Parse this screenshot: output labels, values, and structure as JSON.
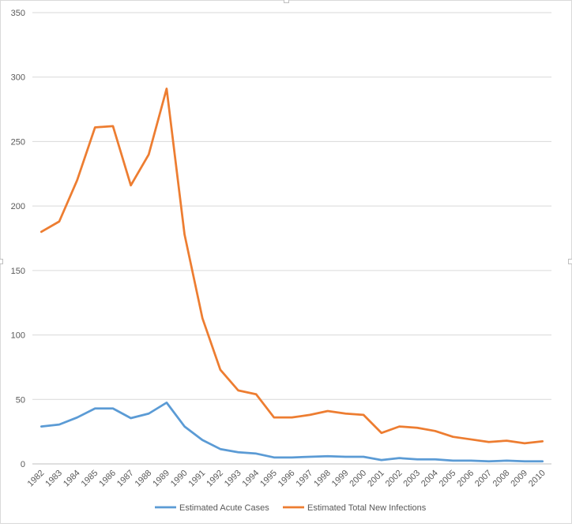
{
  "chart_data": {
    "type": "line",
    "title": "",
    "xlabel": "",
    "ylabel": "",
    "ylim": [
      0,
      350
    ],
    "yticks": [
      0,
      50,
      100,
      150,
      200,
      250,
      300,
      350
    ],
    "grid": "horizontal",
    "legend_position": "bottom",
    "categories": [
      "1982",
      "1983",
      "1984",
      "1985",
      "1986",
      "1987",
      "1988",
      "1989",
      "1990",
      "1991",
      "1992",
      "1993",
      "1994",
      "1995",
      "1996",
      "1997",
      "1998",
      "1999",
      "2000",
      "2001",
      "2002",
      "2003",
      "2004",
      "2005",
      "2006",
      "2007",
      "2008",
      "2009",
      "2010"
    ],
    "series": [
      {
        "name": "Estimated Acute Cases",
        "color": "#5b9bd5",
        "values": [
          29,
          30.5,
          36,
          43,
          43,
          35.5,
          39,
          47.5,
          29,
          18.5,
          11.5,
          9,
          8,
          5,
          5,
          5.5,
          6,
          5.5,
          5.5,
          3,
          4.5,
          3.5,
          3.5,
          2.5,
          2.5,
          2,
          2.5,
          2,
          2
        ]
      },
      {
        "name": "Estimated Total New Infections",
        "color": "#ed7d31",
        "values": [
          180,
          188,
          220,
          261,
          262,
          216,
          240,
          291,
          178,
          113,
          73,
          57,
          54,
          36,
          36,
          38,
          41,
          39,
          38,
          24,
          29,
          28,
          25.5,
          21,
          19,
          17,
          18,
          16,
          17.5
        ]
      }
    ]
  }
}
